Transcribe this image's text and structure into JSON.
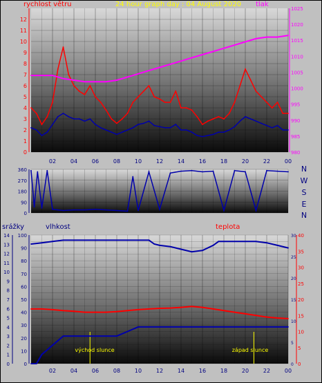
{
  "chart_data": [
    {
      "type": "line",
      "title": "24 hour graph day : 04 August 2020",
      "left_axis_label": "rychlost větru",
      "right_axis_label": "tlak",
      "x_ticks": [
        "02",
        "04",
        "06",
        "08",
        "10",
        "12",
        "14",
        "16",
        "18",
        "20",
        "22",
        "00"
      ],
      "left_ticks": [
        "0",
        "1",
        "2",
        "3",
        "4",
        "5",
        "6",
        "7",
        "8",
        "9",
        "10",
        "11",
        "12"
      ],
      "right_ticks": [
        "980",
        "985",
        "990",
        "995",
        "1000",
        "1005",
        "1010",
        "1015",
        "1020",
        "1025"
      ],
      "ylim_left": [
        0,
        13
      ],
      "ylim_right": [
        980,
        1025
      ],
      "grid": true,
      "series": [
        {
          "color": "#ff0000",
          "hours": [
            0,
            0.5,
            1,
            1.5,
            2,
            2.5,
            3,
            3.5,
            4,
            4.5,
            5,
            5.5,
            6,
            6.5,
            7,
            7.5,
            8,
            8.5,
            9,
            9.5,
            10,
            10.5,
            11,
            11.5,
            12,
            12.5,
            13,
            13.5,
            14,
            14.5,
            15,
            15.5,
            16,
            16.5,
            17,
            17.5,
            18,
            18.5,
            19,
            19.5,
            20,
            20.5,
            21,
            21.5,
            22,
            22.5,
            23,
            23.5,
            24
          ],
          "values": [
            4,
            3.5,
            2.5,
            3.2,
            4.5,
            7.5,
            9.5,
            7,
            6,
            5.5,
            5.2,
            6,
            5,
            4.5,
            3.8,
            3,
            2.6,
            3,
            3.5,
            4.5,
            5,
            5.5,
            6,
            5,
            4.8,
            4.5,
            4.5,
            5.5,
            4,
            4,
            3.8,
            3.2,
            2.5,
            2.8,
            3,
            3.2,
            3,
            3.5,
            4.5,
            6,
            7.5,
            6.5,
            5.5,
            5,
            4.5,
            4,
            4.5,
            3.5,
            3.5
          ]
        },
        {
          "color": "#0000aa",
          "hours": [
            0,
            0.5,
            1,
            1.5,
            2,
            2.5,
            3,
            3.5,
            4,
            4.5,
            5,
            5.5,
            6,
            6.5,
            7,
            7.5,
            8,
            8.5,
            9,
            9.5,
            10,
            10.5,
            11,
            11.5,
            12,
            12.5,
            13,
            13.5,
            14,
            14.5,
            15,
            15.5,
            16,
            16.5,
            17,
            17.5,
            18,
            18.5,
            19,
            19.5,
            20,
            20.5,
            21,
            21.5,
            22,
            22.5,
            23,
            23.5,
            24
          ],
          "values": [
            2.2,
            2,
            1.5,
            1.8,
            2.5,
            3.2,
            3.5,
            3.2,
            3,
            3,
            2.8,
            3,
            2.5,
            2.2,
            2,
            1.8,
            1.6,
            1.8,
            2,
            2.2,
            2.5,
            2.6,
            2.8,
            2.4,
            2.3,
            2.2,
            2.2,
            2.5,
            2,
            2,
            1.8,
            1.5,
            1.4,
            1.5,
            1.6,
            1.8,
            1.8,
            2,
            2.3,
            2.8,
            3.2,
            3,
            2.8,
            2.6,
            2.4,
            2.2,
            2.4,
            2,
            2
          ]
        },
        {
          "color": "#ff00ff",
          "axis": "right",
          "hours": [
            0,
            1,
            2,
            3,
            4,
            5,
            6,
            7,
            8,
            9,
            10,
            11,
            12,
            13,
            14,
            15,
            16,
            17,
            18,
            19,
            20,
            21,
            22,
            23,
            24
          ],
          "values": [
            1004,
            1004,
            1004,
            1003,
            1002.5,
            1002,
            1002,
            1002,
            1002.5,
            1003.5,
            1004.5,
            1005.5,
            1006.5,
            1007.5,
            1008.5,
            1009.5,
            1010.5,
            1011.5,
            1012.5,
            1013.5,
            1014.5,
            1015.5,
            1016,
            1016,
            1016.5
          ]
        }
      ]
    },
    {
      "type": "line",
      "right_axis_label": [
        "N",
        "W",
        "S",
        "E",
        "N"
      ],
      "left_ticks": [
        "0",
        "90",
        "180",
        "270",
        "360"
      ],
      "ylim": [
        0,
        360
      ],
      "grid": true,
      "series": [
        {
          "color": "#0000aa",
          "hours": [
            0,
            0.3,
            0.6,
            1,
            1.5,
            2,
            3,
            4,
            5,
            6,
            7,
            8,
            9,
            9.5,
            10,
            11,
            12,
            13,
            14,
            15,
            16,
            17,
            18,
            19,
            20,
            21,
            22,
            23,
            24
          ],
          "values": [
            350,
            50,
            340,
            40,
            350,
            30,
            20,
            25,
            25,
            30,
            25,
            20,
            15,
            300,
            20,
            340,
            30,
            330,
            345,
            350,
            340,
            345,
            20,
            350,
            340,
            20,
            350,
            345,
            340
          ]
        }
      ]
    },
    {
      "type": "line",
      "left_axis_label": "srážky",
      "left_axis_label_2": "vlhkost",
      "right_axis_label": "teplota",
      "x_ticks": [
        "02",
        "04",
        "06",
        "08",
        "10",
        "12",
        "14",
        "16",
        "18",
        "20",
        "22",
        "00"
      ],
      "left_ticks_outer": [
        "0",
        "1",
        "2",
        "3",
        "4",
        "5",
        "6",
        "7",
        "8",
        "9",
        "10",
        "11",
        "12",
        "13",
        "14"
      ],
      "left_ticks_inner": [
        "0",
        "10",
        "20",
        "30",
        "40",
        "50",
        "60",
        "70",
        "80",
        "90",
        "100"
      ],
      "right_ticks": [
        "0",
        "5",
        "10",
        "15",
        "20",
        "25",
        "30",
        "35",
        "40"
      ],
      "right_ticks_2": [
        "0",
        "5",
        "10",
        "15",
        "20",
        "25",
        "30"
      ],
      "ylim_left": [
        0,
        100
      ],
      "ylim_right": [
        0,
        40
      ],
      "sunrise_label": "východ slunce",
      "sunset_label": "západ slunce",
      "sunrise_hour": 5.5,
      "sunset_hour": 20.8,
      "grid": true,
      "series": [
        {
          "color": "#0000aa",
          "hours": [
            0,
            1,
            2,
            3,
            4,
            5,
            6,
            7,
            8,
            9,
            10,
            11,
            11.5,
            12,
            13,
            14,
            15,
            16,
            17,
            17.5,
            18,
            19,
            20,
            21,
            22,
            23,
            24
          ],
          "values": [
            93,
            94,
            95,
            96,
            96,
            96,
            96,
            96,
            96,
            96,
            96,
            96,
            93,
            92,
            91,
            89,
            87,
            88,
            92,
            95,
            95,
            95,
            95,
            95,
            94,
            92,
            90
          ]
        },
        {
          "color": "#ff0000",
          "axis": "right",
          "hours": [
            0,
            1,
            2,
            3,
            4,
            5,
            6,
            7,
            8,
            9,
            10,
            11,
            12,
            13,
            14,
            15,
            16,
            17,
            18,
            19,
            20,
            21,
            22,
            23,
            24
          ],
          "values": [
            17,
            17,
            16.8,
            16.5,
            16.3,
            16,
            16,
            16,
            16.2,
            16.5,
            16.8,
            17,
            17.2,
            17.3,
            17.5,
            17.8,
            17.5,
            17,
            16.5,
            16,
            15.5,
            15,
            14.5,
            14.2,
            14
          ]
        },
        {
          "color": "#0000aa",
          "axis": "rain",
          "hours": [
            0,
            0.5,
            1,
            1.5,
            2,
            2.5,
            3,
            4,
            5,
            6,
            7,
            8,
            9,
            10,
            11,
            12,
            13,
            14,
            15,
            16,
            17,
            18,
            19,
            20,
            21,
            22,
            23,
            24
          ],
          "values": [
            0,
            0,
            1,
            1.5,
            2,
            2.5,
            3,
            3,
            3,
            3,
            3,
            3,
            3.5,
            4,
            4,
            4,
            4,
            4,
            4,
            4,
            4,
            4,
            4,
            4,
            4,
            4,
            4,
            4
          ]
        }
      ]
    }
  ]
}
